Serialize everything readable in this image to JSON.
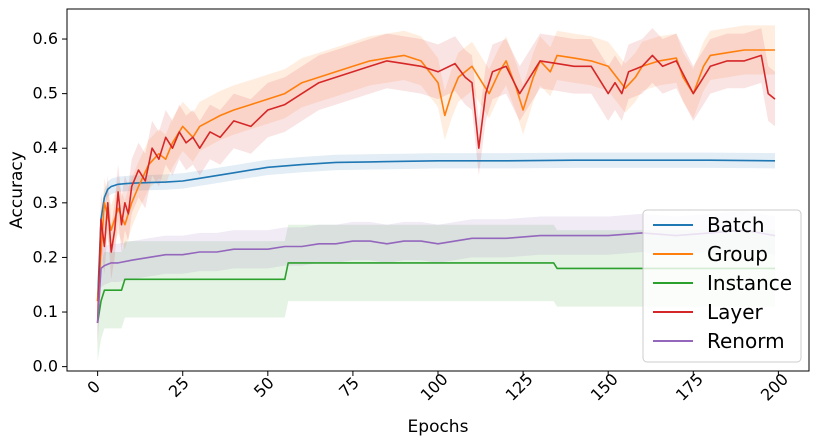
{
  "chart_data": {
    "type": "line",
    "title": "",
    "xlabel": "Epochs",
    "ylabel": "Accuracy",
    "xlim": [
      -9,
      209
    ],
    "ylim": [
      -0.008,
      0.655
    ],
    "xticks": [
      0,
      25,
      50,
      75,
      100,
      125,
      150,
      175,
      200
    ],
    "xtick_labels": [
      "0",
      "25",
      "50",
      "75",
      "100",
      "125",
      "150",
      "175",
      "200"
    ],
    "yticks": [
      0.0,
      0.1,
      0.2,
      0.3,
      0.4,
      0.5,
      0.6
    ],
    "ytick_labels": [
      "0.0",
      "0.1",
      "0.2",
      "0.3",
      "0.4",
      "0.5",
      "0.6"
    ],
    "grid": false,
    "legend_position": "lower-right",
    "series": [
      {
        "name": "Batch",
        "color": "#1f77b4",
        "x": [
          0,
          1,
          2,
          3,
          4,
          5,
          6,
          8,
          10,
          15,
          20,
          25,
          30,
          40,
          50,
          60,
          70,
          80,
          90,
          100,
          120,
          140,
          160,
          180,
          199
        ],
        "values": [
          0.12,
          0.27,
          0.31,
          0.325,
          0.33,
          0.332,
          0.334,
          0.335,
          0.336,
          0.337,
          0.338,
          0.34,
          0.345,
          0.355,
          0.365,
          0.37,
          0.374,
          0.375,
          0.376,
          0.377,
          0.377,
          0.378,
          0.378,
          0.378,
          0.377
        ],
        "band": 0.014
      },
      {
        "name": "Group",
        "color": "#ff7f0e",
        "x": [
          0,
          2,
          4,
          6,
          8,
          10,
          12,
          15,
          18,
          20,
          22,
          25,
          28,
          30,
          33,
          36,
          40,
          45,
          50,
          55,
          60,
          65,
          70,
          75,
          80,
          85,
          90,
          95,
          100,
          102,
          104,
          106,
          110,
          113,
          115,
          118,
          120,
          123,
          125,
          128,
          130,
          133,
          135,
          140,
          145,
          150,
          155,
          158,
          160,
          165,
          170,
          172,
          175,
          178,
          180,
          185,
          190,
          195,
          199
        ],
        "values": [
          0.12,
          0.3,
          0.25,
          0.29,
          0.26,
          0.3,
          0.33,
          0.37,
          0.39,
          0.38,
          0.41,
          0.44,
          0.42,
          0.44,
          0.45,
          0.46,
          0.47,
          0.48,
          0.49,
          0.5,
          0.52,
          0.53,
          0.54,
          0.55,
          0.56,
          0.565,
          0.57,
          0.56,
          0.52,
          0.46,
          0.5,
          0.53,
          0.55,
          0.52,
          0.5,
          0.54,
          0.56,
          0.51,
          0.47,
          0.53,
          0.56,
          0.54,
          0.57,
          0.565,
          0.56,
          0.55,
          0.51,
          0.53,
          0.55,
          0.56,
          0.565,
          0.53,
          0.5,
          0.55,
          0.57,
          0.575,
          0.58,
          0.58,
          0.58
        ],
        "band": 0.045
      },
      {
        "name": "Instance",
        "color": "#2ca02c",
        "x": [
          0,
          1,
          2,
          7,
          8,
          55,
          56,
          134,
          135,
          199
        ],
        "values": [
          0.08,
          0.12,
          0.14,
          0.14,
          0.16,
          0.16,
          0.19,
          0.19,
          0.18,
          0.18
        ],
        "band": 0.07
      },
      {
        "name": "Layer",
        "color": "#d62728",
        "x": [
          0,
          1,
          2,
          3,
          4,
          5,
          6,
          7,
          8,
          9,
          10,
          12,
          14,
          16,
          18,
          20,
          22,
          24,
          26,
          28,
          30,
          33,
          36,
          40,
          45,
          50,
          55,
          60,
          65,
          70,
          75,
          80,
          85,
          90,
          95,
          100,
          105,
          108,
          110,
          112,
          114,
          116,
          120,
          124,
          126,
          130,
          135,
          140,
          145,
          150,
          152,
          154,
          156,
          160,
          163,
          166,
          170,
          175,
          178,
          180,
          185,
          190,
          195,
          197,
          199
        ],
        "values": [
          0.08,
          0.27,
          0.22,
          0.3,
          0.21,
          0.25,
          0.32,
          0.26,
          0.3,
          0.28,
          0.33,
          0.36,
          0.34,
          0.4,
          0.38,
          0.42,
          0.4,
          0.43,
          0.41,
          0.42,
          0.4,
          0.43,
          0.42,
          0.45,
          0.44,
          0.47,
          0.48,
          0.5,
          0.52,
          0.53,
          0.54,
          0.55,
          0.56,
          0.555,
          0.55,
          0.54,
          0.555,
          0.53,
          0.52,
          0.4,
          0.5,
          0.54,
          0.55,
          0.5,
          0.52,
          0.56,
          0.555,
          0.55,
          0.55,
          0.5,
          0.52,
          0.5,
          0.54,
          0.55,
          0.57,
          0.55,
          0.56,
          0.5,
          0.53,
          0.55,
          0.56,
          0.56,
          0.57,
          0.5,
          0.49
        ],
        "band": 0.05
      },
      {
        "name": "Renorm",
        "color": "#9467bd",
        "x": [
          0,
          1,
          2,
          4,
          6,
          10,
          15,
          20,
          25,
          30,
          35,
          40,
          45,
          50,
          55,
          60,
          65,
          70,
          75,
          80,
          85,
          90,
          95,
          100,
          110,
          120,
          130,
          140,
          150,
          160,
          170,
          180,
          190,
          199
        ],
        "values": [
          0.08,
          0.18,
          0.185,
          0.19,
          0.19,
          0.195,
          0.2,
          0.205,
          0.205,
          0.21,
          0.21,
          0.215,
          0.215,
          0.215,
          0.22,
          0.22,
          0.225,
          0.225,
          0.23,
          0.23,
          0.225,
          0.23,
          0.23,
          0.225,
          0.235,
          0.235,
          0.24,
          0.24,
          0.24,
          0.245,
          0.24,
          0.245,
          0.25,
          0.24
        ],
        "band": 0.035
      }
    ]
  }
}
